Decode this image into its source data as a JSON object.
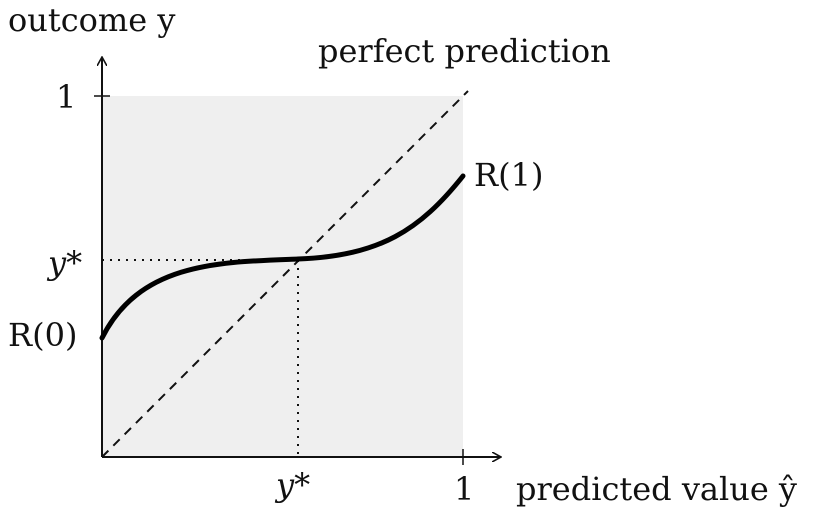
{
  "labels": {
    "y_axis_title": "outcome y",
    "x_axis_title": "predicted value ŷ",
    "diagonal_label": "perfect prediction",
    "curve_end_label": "R(1)",
    "curve_start_label": "R(0)",
    "y_star_label": "y*",
    "x_star_label": "y*",
    "y_one_label": "1",
    "x_one_label": "1"
  },
  "colors": {
    "region_fill": "#efefef",
    "ink": "#111111"
  }
}
